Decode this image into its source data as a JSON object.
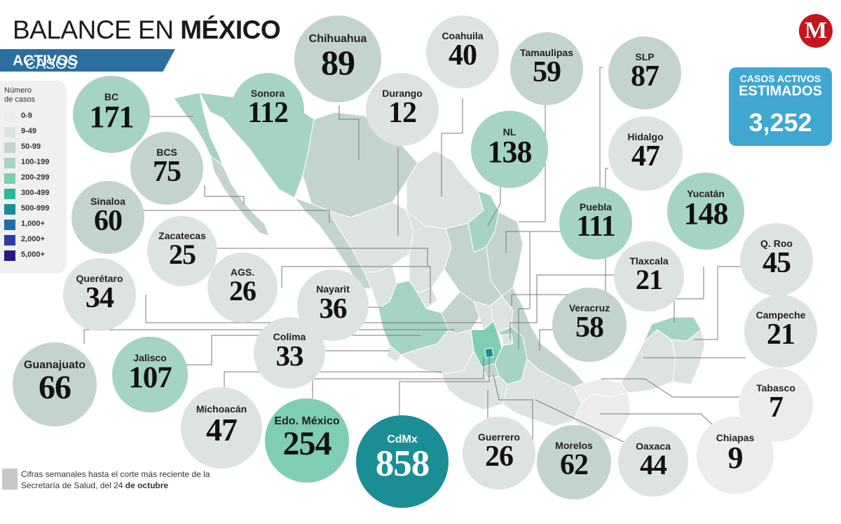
{
  "title": {
    "normal": "BALANCE EN ",
    "bold": "MÉXICO"
  },
  "subtitle": {
    "normal": "CASOS ",
    "bold": "ACTIVOS"
  },
  "legend": {
    "title_line1": "Número",
    "title_line2": "de casos",
    "items": [
      {
        "label": "0-9",
        "color": "#ececec"
      },
      {
        "label": "9-49",
        "color": "#dde3e1"
      },
      {
        "label": "50-99",
        "color": "#c3d4ce"
      },
      {
        "label": "100-199",
        "color": "#a5d3c4"
      },
      {
        "label": "200-299",
        "color": "#7fcdb4"
      },
      {
        "label": "300-499",
        "color": "#33b39b"
      },
      {
        "label": "500-999",
        "color": "#1a8d95"
      },
      {
        "label": "1,000+",
        "color": "#1f6fa8"
      },
      {
        "label": "2,000+",
        "color": "#2a3ea3"
      },
      {
        "label": "5,000+",
        "color": "#2b1a78"
      }
    ]
  },
  "total": {
    "line1": "CASOS ACTIVOS",
    "line2": "ESTIMADOS",
    "value": "3,252"
  },
  "logo": {
    "letter": "M"
  },
  "footnote": {
    "line1": "Cifras semanales hasta el corte más reciente de la",
    "line2_normal": "Secretaría de Salud, del 24 ",
    "line2_bold": "de octubre"
  },
  "states": [
    {
      "name": "Chihuahua",
      "value": "89",
      "color": "#c3d4ce"
    },
    {
      "name": "Coahuila",
      "value": "40",
      "color": "#dde3e1"
    },
    {
      "name": "Tamaulipas",
      "value": "59",
      "color": "#c3d4ce"
    },
    {
      "name": "SLP",
      "value": "87",
      "color": "#c3d4ce"
    },
    {
      "name": "BC",
      "value": "171",
      "color": "#a5d3c4"
    },
    {
      "name": "Sonora",
      "value": "112",
      "color": "#a5d3c4"
    },
    {
      "name": "Durango",
      "value": "12",
      "color": "#dde3e1"
    },
    {
      "name": "NL",
      "value": "138",
      "color": "#a5d3c4"
    },
    {
      "name": "Hidalgo",
      "value": "47",
      "color": "#dde3e1"
    },
    {
      "name": "BCS",
      "value": "75",
      "color": "#c3d4ce"
    },
    {
      "name": "Sinaloa",
      "value": "60",
      "color": "#c3d4ce"
    },
    {
      "name": "Puebla",
      "value": "111",
      "color": "#a5d3c4"
    },
    {
      "name": "Yucatán",
      "value": "148",
      "color": "#a5d3c4"
    },
    {
      "name": "Zacatecas",
      "value": "25",
      "color": "#dde3e1"
    },
    {
      "name": "Tlaxcala",
      "value": "21",
      "color": "#dde3e1"
    },
    {
      "name": "Q. Roo",
      "value": "45",
      "color": "#dde3e1"
    },
    {
      "name": "AGS.",
      "value": "26",
      "color": "#dde3e1"
    },
    {
      "name": "Querétaro",
      "value": "34",
      "color": "#dde3e1"
    },
    {
      "name": "Nayarit",
      "value": "36",
      "color": "#dde3e1"
    },
    {
      "name": "Veracruz",
      "value": "58",
      "color": "#c3d4ce"
    },
    {
      "name": "Campeche",
      "value": "21",
      "color": "#dde3e1"
    },
    {
      "name": "Colima",
      "value": "33",
      "color": "#dde3e1"
    },
    {
      "name": "Jalisco",
      "value": "107",
      "color": "#a5d3c4"
    },
    {
      "name": "Guanajuato",
      "value": "66",
      "color": "#c3d4ce"
    },
    {
      "name": "Tabasco",
      "value": "7",
      "color": "#ececec"
    },
    {
      "name": "Michoacán",
      "value": "47",
      "color": "#dde3e1"
    },
    {
      "name": "Edo. México",
      "value": "254",
      "color": "#7fcdb4"
    },
    {
      "name": "CdMx",
      "value": "858",
      "color": "#1a8d95"
    },
    {
      "name": "Guerrero",
      "value": "26",
      "color": "#dde3e1"
    },
    {
      "name": "Morelos",
      "value": "62",
      "color": "#c3d4ce"
    },
    {
      "name": "Oaxaca",
      "value": "44",
      "color": "#dde3e1"
    },
    {
      "name": "Chiapas",
      "value": "9",
      "color": "#ececec"
    }
  ]
}
